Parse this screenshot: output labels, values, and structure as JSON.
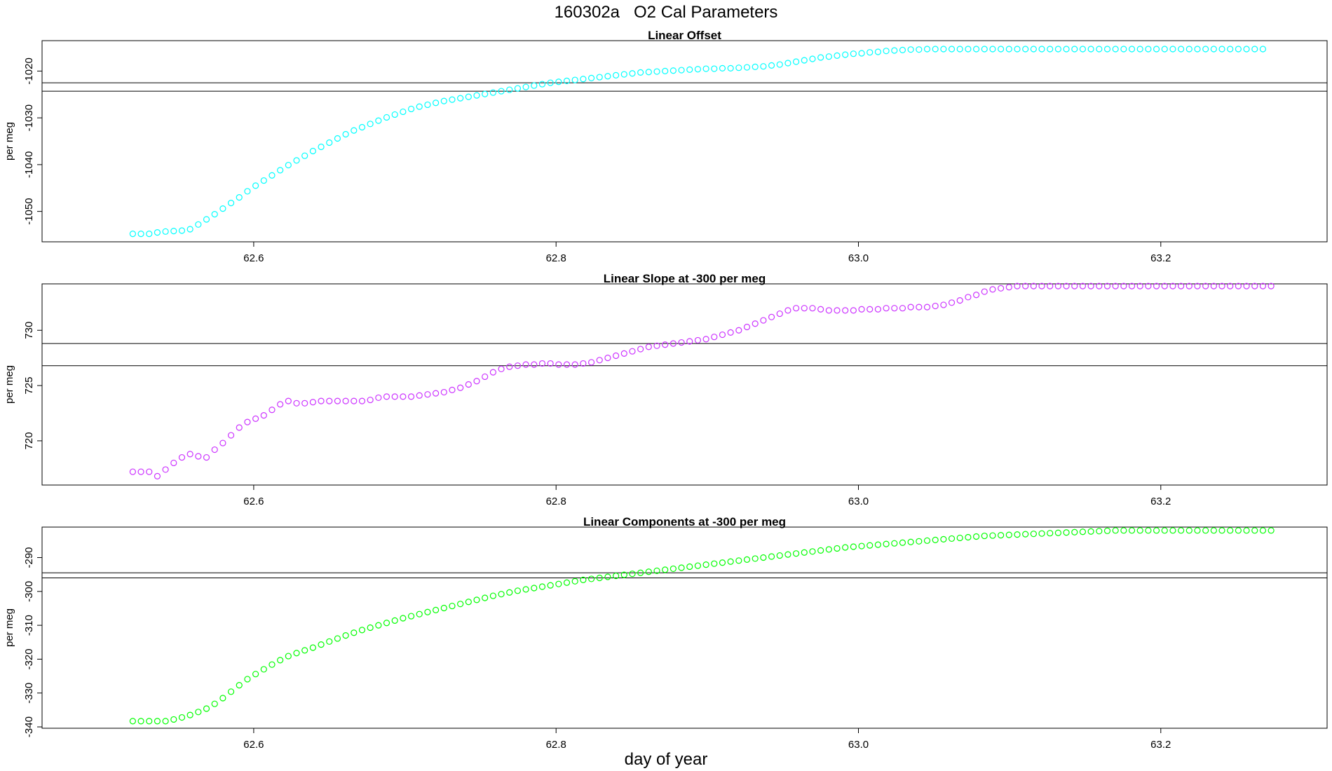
{
  "figure": {
    "title": "160302a   O2 Cal Parameters",
    "xlabel": "day of year"
  },
  "chart_data": [
    {
      "type": "scatter",
      "title": "Linear Offset",
      "ylabel": "per meg",
      "xlabel": "day of year",
      "color": "#00FFFF",
      "xlim": [
        62.46,
        63.31
      ],
      "ylim": [
        -1056.5,
        -1013.5
      ],
      "xticks": [
        "62.6",
        "62.8",
        "63.0",
        "63.2"
      ],
      "xtick_values": [
        62.6,
        62.8,
        63.0,
        63.2
      ],
      "yticks": [
        "-1020",
        "-1030",
        "-1040",
        "-1050"
      ],
      "ytick_values": [
        -1020,
        -1030,
        -1040,
        -1050
      ],
      "hlines": [
        -1022.5,
        -1024.3
      ],
      "x_start": 62.52,
      "x_step": 0.005417,
      "y": [
        -1054.8,
        -1054.8,
        -1054.8,
        -1054.5,
        -1054.3,
        -1054.2,
        -1054.1,
        -1053.8,
        -1052.8,
        -1051.7,
        -1050.6,
        -1049.4,
        -1048.2,
        -1047.0,
        -1045.7,
        -1044.5,
        -1043.4,
        -1042.3,
        -1041.2,
        -1040.1,
        -1039.1,
        -1038.1,
        -1037.1,
        -1036.2,
        -1035.3,
        -1034.4,
        -1033.5,
        -1032.7,
        -1032.0,
        -1031.3,
        -1030.6,
        -1029.9,
        -1029.3,
        -1028.7,
        -1028.1,
        -1027.6,
        -1027.2,
        -1026.8,
        -1026.4,
        -1026.1,
        -1025.8,
        -1025.5,
        -1025.2,
        -1024.9,
        -1024.6,
        -1024.3,
        -1024.0,
        -1023.7,
        -1023.4,
        -1023.1,
        -1022.8,
        -1022.5,
        -1022.3,
        -1022.1,
        -1021.9,
        -1021.7,
        -1021.5,
        -1021.3,
        -1021.1,
        -1020.9,
        -1020.7,
        -1020.5,
        -1020.3,
        -1020.2,
        -1020.1,
        -1020.0,
        -1019.9,
        -1019.8,
        -1019.7,
        -1019.6,
        -1019.5,
        -1019.5,
        -1019.4,
        -1019.4,
        -1019.3,
        -1019.2,
        -1019.1,
        -1019.0,
        -1018.8,
        -1018.6,
        -1018.3,
        -1018.0,
        -1017.7,
        -1017.4,
        -1017.1,
        -1016.9,
        -1016.7,
        -1016.5,
        -1016.3,
        -1016.2,
        -1016.0,
        -1015.9,
        -1015.7,
        -1015.6,
        -1015.5,
        -1015.4,
        -1015.4,
        -1015.3,
        -1015.3,
        -1015.3,
        -1015.3,
        -1015.3,
        -1015.3,
        -1015.3,
        -1015.3,
        -1015.3,
        -1015.3,
        -1015.3,
        -1015.3,
        -1015.3,
        -1015.3,
        -1015.3,
        -1015.3,
        -1015.3,
        -1015.3,
        -1015.3,
        -1015.3,
        -1015.3,
        -1015.3,
        -1015.3,
        -1015.3,
        -1015.3,
        -1015.3,
        -1015.3,
        -1015.3,
        -1015.3,
        -1015.3,
        -1015.3,
        -1015.3,
        -1015.3,
        -1015.3,
        -1015.3,
        -1015.3,
        -1015.3,
        -1015.3,
        -1015.3,
        -1015.3,
        -1015.3,
        -1015.3
      ]
    },
    {
      "type": "scatter",
      "title": "Linear Slope at -300 per meg",
      "ylabel": "per meg",
      "xlabel": "day of year",
      "color": "#CC33FF",
      "xlim": [
        62.46,
        63.31
      ],
      "ylim": [
        716.0,
        734.2
      ],
      "xticks": [
        "62.6",
        "62.8",
        "63.0",
        "63.2"
      ],
      "xtick_values": [
        62.6,
        62.8,
        63.0,
        63.2
      ],
      "yticks": [
        "730",
        "725",
        "720"
      ],
      "ytick_values": [
        730,
        725,
        720
      ],
      "hlines": [
        728.8,
        726.8
      ],
      "x_start": 62.52,
      "x_step": 0.005417,
      "y": [
        717.2,
        717.2,
        717.2,
        716.8,
        717.4,
        718.0,
        718.5,
        718.8,
        718.6,
        718.5,
        719.2,
        719.8,
        720.5,
        721.2,
        721.7,
        722.0,
        722.3,
        722.8,
        723.3,
        723.6,
        723.4,
        723.4,
        723.5,
        723.6,
        723.6,
        723.6,
        723.6,
        723.6,
        723.6,
        723.7,
        723.9,
        724.0,
        724.0,
        724.0,
        724.0,
        724.1,
        724.2,
        724.3,
        724.4,
        724.6,
        724.8,
        725.1,
        725.4,
        725.8,
        726.2,
        726.5,
        726.7,
        726.8,
        726.9,
        726.9,
        727.0,
        727.0,
        726.9,
        726.9,
        726.9,
        727.0,
        727.1,
        727.3,
        727.5,
        727.7,
        727.9,
        728.1,
        728.3,
        728.5,
        728.6,
        728.7,
        728.8,
        728.9,
        729.0,
        729.1,
        729.2,
        729.4,
        729.6,
        729.8,
        730.0,
        730.3,
        730.6,
        730.9,
        731.2,
        731.5,
        731.8,
        732.0,
        732.0,
        732.0,
        731.9,
        731.8,
        731.8,
        731.8,
        731.8,
        731.9,
        731.9,
        731.9,
        732.0,
        732.0,
        732.0,
        732.1,
        732.1,
        732.1,
        732.2,
        732.3,
        732.5,
        732.7,
        733.0,
        733.2,
        733.5,
        733.7,
        733.8,
        733.9,
        734.0,
        734.0,
        734.0,
        734.0,
        734.0,
        734.0,
        734.0,
        734.0,
        734.0,
        734.0,
        734.0,
        734.0,
        734.0,
        734.0,
        734.0,
        734.0,
        734.0,
        734.0,
        734.0,
        734.0,
        734.0,
        734.0,
        734.0,
        734.0,
        734.0,
        734.0,
        734.0,
        734.0,
        734.0,
        734.0,
        734.0,
        734.0
      ]
    },
    {
      "type": "scatter",
      "title": "Linear Components at -300 per meg",
      "ylabel": "per meg",
      "xlabel": "day of year",
      "color": "#00FF00",
      "xlim": [
        62.46,
        63.31
      ],
      "ylim": [
        -340.4,
        -281.0
      ],
      "xticks": [
        "62.6",
        "62.8",
        "63.0",
        "63.2"
      ],
      "xtick_values": [
        62.6,
        62.8,
        63.0,
        63.2
      ],
      "yticks": [
        "-290",
        "-300",
        "-310",
        "-320",
        "-330",
        "-340"
      ],
      "ytick_values": [
        -290,
        -300,
        -310,
        -320,
        -330,
        -340
      ],
      "hlines": [
        -294.5,
        -296.0
      ],
      "x_start": 62.52,
      "x_step": 0.005417,
      "y": [
        -338.3,
        -338.3,
        -338.3,
        -338.3,
        -338.3,
        -337.8,
        -337.2,
        -336.5,
        -335.6,
        -334.6,
        -333.2,
        -331.5,
        -329.6,
        -327.7,
        -325.9,
        -324.4,
        -323.0,
        -321.6,
        -320.3,
        -319.1,
        -318.2,
        -317.4,
        -316.6,
        -315.7,
        -314.8,
        -313.9,
        -313.0,
        -312.2,
        -311.4,
        -310.7,
        -310.0,
        -309.3,
        -308.6,
        -307.9,
        -307.3,
        -306.7,
        -306.1,
        -305.5,
        -304.9,
        -304.3,
        -303.7,
        -303.1,
        -302.5,
        -301.9,
        -301.3,
        -300.8,
        -300.3,
        -299.8,
        -299.4,
        -299.0,
        -298.6,
        -298.2,
        -297.8,
        -297.4,
        -297.0,
        -296.6,
        -296.3,
        -296.0,
        -295.7,
        -295.4,
        -295.1,
        -294.8,
        -294.5,
        -294.2,
        -293.9,
        -293.6,
        -293.3,
        -293.0,
        -292.7,
        -292.4,
        -292.1,
        -291.8,
        -291.5,
        -291.2,
        -290.9,
        -290.6,
        -290.3,
        -290.0,
        -289.7,
        -289.4,
        -289.1,
        -288.8,
        -288.5,
        -288.2,
        -287.9,
        -287.6,
        -287.3,
        -287.0,
        -286.8,
        -286.6,
        -286.4,
        -286.2,
        -286.0,
        -285.8,
        -285.6,
        -285.4,
        -285.2,
        -285.0,
        -284.8,
        -284.6,
        -284.4,
        -284.2,
        -284.0,
        -283.8,
        -283.6,
        -283.5,
        -283.4,
        -283.3,
        -283.2,
        -283.1,
        -283.0,
        -282.9,
        -282.8,
        -282.7,
        -282.6,
        -282.5,
        -282.4,
        -282.3,
        -282.2,
        -282.1,
        -282.0,
        -282.0,
        -282.0,
        -282.0,
        -282.0,
        -282.0,
        -282.0,
        -282.0,
        -282.0,
        -282.0,
        -282.0,
        -282.0,
        -282.0,
        -282.0,
        -282.0,
        -282.0,
        -282.0,
        -282.0,
        -282.0,
        -282.0
      ]
    }
  ]
}
